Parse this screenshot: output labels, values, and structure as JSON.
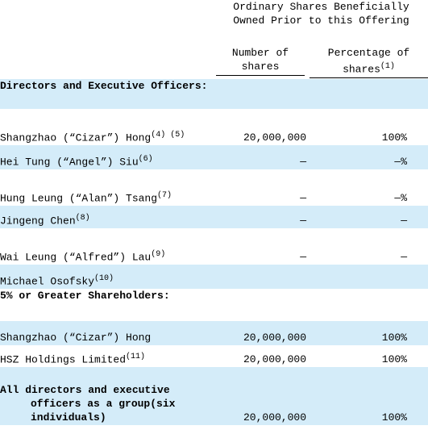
{
  "header": {
    "group": "Ordinary Shares Beneficially Owned Prior to this Offering",
    "columns": [
      {
        "label": "Number of shares"
      },
      {
        "label": "Percentage of shares",
        "note": "(1)"
      }
    ]
  },
  "table": {
    "rows": [
      {
        "name": "Directors and Executive Officers:",
        "section": true
      },
      {
        "name": "Shangzhao (“Cizar”) Hong",
        "note": "(4) (5)",
        "shares": "20,000,000",
        "percent": "100%"
      },
      {
        "name": "Hei Tung (“Angel”) Siu",
        "note": "(6)",
        "shares": "—",
        "percent": "—%"
      },
      {
        "name": "Hung Leung (“Alan”) Tsang",
        "note": "(7)",
        "shares": "—",
        "percent": "—%"
      },
      {
        "name": "Jingeng Chen",
        "note": "(8)",
        "shares": "—",
        "percent": "—"
      },
      {
        "name": "Wai Leung (“Alfred”) Lau",
        "note": "(9)",
        "shares": "—",
        "percent": "—"
      },
      {
        "name": "Michael Osofsky",
        "note": "(10)"
      },
      {
        "name": "5% or Greater Shareholders:",
        "section": true
      },
      {
        "name": "Shangzhao (“Cizar”) Hong",
        "shares": "20,000,000",
        "percent": "100%"
      },
      {
        "name": "HSZ Holdings Limited",
        "note": "(11)",
        "shares": "20,000,000",
        "percent": "100%"
      },
      {
        "name": "All directors and executive officers as a group(six individuals)",
        "section": true,
        "shares": "20,000,000",
        "percent": "100%"
      }
    ]
  }
}
